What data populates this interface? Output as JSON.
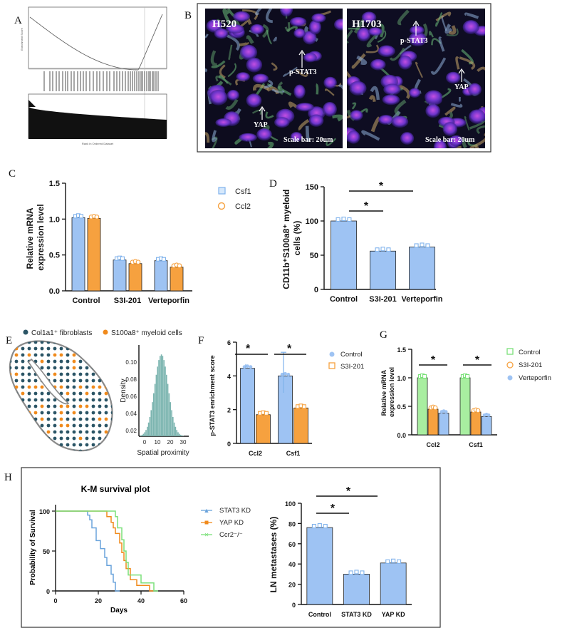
{
  "panels": {
    "A": "A",
    "B": "B",
    "C": "C",
    "D": "D",
    "E": "E",
    "F": "F",
    "G": "G",
    "H": "H"
  },
  "colors": {
    "blue": "#9ec3f3",
    "orange": "#f6a13f",
    "green": "#a8eea0",
    "dark_teal": "#2b5566",
    "hist_teal": "#7cb5b0",
    "km_blue": "#6aa3dc",
    "km_orange": "#f08a1c",
    "km_green": "#7be07a"
  },
  "panel_b": {
    "images": [
      {
        "title": "H520",
        "labels": [
          "p-STAT3",
          "YAP"
        ],
        "scale": "Scale bar: 20um"
      },
      {
        "title": "H1703",
        "labels": [
          "p-STAT3",
          "YAP"
        ],
        "scale": "Scale bar: 20um"
      }
    ]
  },
  "panel_e": {
    "legend": [
      "Col1a1⁺ fibroblasts",
      "S100a8⁺ myeloid cells"
    ],
    "hist_xlabel": "Spatial proximity",
    "hist_ylabel": "Density",
    "hist_yticks": [
      "0.10",
      "0.08",
      "0.06",
      "0.04",
      "0.02"
    ],
    "hist_xticks": [
      "0",
      "10",
      "20",
      "30"
    ]
  },
  "chart_data": [
    {
      "panel": "A",
      "type": "line",
      "xlabel": "Rank in Ordered Dataset",
      "ylabel": "Enrichment Score"
    },
    {
      "panel": "C",
      "type": "bar",
      "categories": [
        "Control",
        "S3I-201",
        "Verteporfin"
      ],
      "series": [
        {
          "name": "Csf1",
          "values": [
            1.02,
            0.43,
            0.42
          ]
        },
        {
          "name": "Ccl2",
          "values": [
            1.01,
            0.38,
            0.33
          ]
        }
      ],
      "ylabel": "Relative mRNA expression level",
      "ylim": [
        0,
        1.5
      ],
      "yticks": [
        "0.0",
        "0.5",
        "1.0",
        "1.5"
      ]
    },
    {
      "panel": "D",
      "type": "bar",
      "categories": [
        "Control",
        "S3I-201",
        "Verteporfin"
      ],
      "values": [
        100,
        56,
        62
      ],
      "ylabel": "CD11b⁺S100a8⁺ myeloid cells (%)",
      "ylim": [
        0,
        150
      ],
      "yticks": [
        "0",
        "50",
        "100",
        "150"
      ],
      "annotations": [
        "*",
        "*"
      ]
    },
    {
      "panel": "F",
      "type": "bar",
      "categories": [
        "Ccl2",
        "Csf1"
      ],
      "series": [
        {
          "name": "Control",
          "values": [
            4.45,
            4.0
          ]
        },
        {
          "name": "S3I-201",
          "values": [
            1.7,
            2.1
          ]
        }
      ],
      "ylabel": "p-STAT3 enrichment score",
      "ylim": [
        0,
        6
      ],
      "yticks": [
        "0",
        "2",
        "4",
        "6"
      ],
      "annotations": [
        "*",
        "*"
      ]
    },
    {
      "panel": "G",
      "type": "bar",
      "categories": [
        "Ccl2",
        "Csf1"
      ],
      "series": [
        {
          "name": "Control",
          "values": [
            1.0,
            1.0
          ]
        },
        {
          "name": "S3I-201",
          "values": [
            0.45,
            0.4
          ]
        },
        {
          "name": "Verteporfin",
          "values": [
            0.38,
            0.32
          ]
        }
      ],
      "ylabel": "Relative mRNA expression level",
      "ylim": [
        0,
        1.5
      ],
      "yticks": [
        "0.0",
        "0.5",
        "1.0",
        "1.5"
      ],
      "annotations": [
        "*",
        "*"
      ]
    },
    {
      "panel": "H-left",
      "type": "line",
      "title": "K-M survival plot",
      "xlabel": "Days",
      "ylabel": "Probability of Survival",
      "xlim": [
        0,
        60
      ],
      "ylim": [
        0,
        100
      ],
      "xticks": [
        "0",
        "20",
        "40",
        "60"
      ],
      "yticks": [
        "0",
        "50",
        "100"
      ],
      "series": [
        {
          "name": "STAT3 KD",
          "points": [
            [
              0,
              100
            ],
            [
              15,
              100
            ],
            [
              15,
              95
            ],
            [
              16,
              95
            ],
            [
              16,
              89
            ],
            [
              17,
              89
            ],
            [
              17,
              79
            ],
            [
              19,
              79
            ],
            [
              19,
              63
            ],
            [
              21,
              63
            ],
            [
              21,
              53
            ],
            [
              23,
              53
            ],
            [
              23,
              42
            ],
            [
              24,
              42
            ],
            [
              24,
              32
            ],
            [
              26,
              32
            ],
            [
              26,
              21
            ],
            [
              27,
              21
            ],
            [
              27,
              11
            ],
            [
              28,
              11
            ],
            [
              28,
              0
            ],
            [
              30,
              0
            ]
          ]
        },
        {
          "name": "YAP KD",
          "points": [
            [
              0,
              100
            ],
            [
              24,
              100
            ],
            [
              24,
              93
            ],
            [
              26,
              93
            ],
            [
              26,
              86
            ],
            [
              27,
              86
            ],
            [
              27,
              79
            ],
            [
              28,
              79
            ],
            [
              28,
              72
            ],
            [
              30,
              72
            ],
            [
              30,
              60
            ],
            [
              31,
              60
            ],
            [
              31,
              48
            ],
            [
              32,
              48
            ],
            [
              32,
              38
            ],
            [
              33,
              38
            ],
            [
              33,
              28
            ],
            [
              35,
              28
            ],
            [
              35,
              14
            ],
            [
              38,
              14
            ],
            [
              38,
              7
            ],
            [
              44,
              7
            ],
            [
              44,
              0
            ],
            [
              46,
              0
            ]
          ]
        },
        {
          "name": "Ccr2⁻/⁻",
          "points": [
            [
              0,
              100
            ],
            [
              28,
              100
            ],
            [
              28,
              93
            ],
            [
              29,
              93
            ],
            [
              29,
              79
            ],
            [
              31,
              79
            ],
            [
              31,
              64
            ],
            [
              32,
              64
            ],
            [
              32,
              50
            ],
            [
              33,
              50
            ],
            [
              33,
              36
            ],
            [
              34,
              36
            ],
            [
              34,
              20
            ],
            [
              40,
              20
            ],
            [
              40,
              10
            ],
            [
              46,
              10
            ],
            [
              46,
              0
            ],
            [
              48,
              0
            ]
          ]
        }
      ]
    },
    {
      "panel": "H-right",
      "type": "bar",
      "categories": [
        "Control",
        "STAT3 KD",
        "YAP KD"
      ],
      "values": [
        76,
        30,
        41
      ],
      "ylabel": "LN metastases (%)",
      "ylim": [
        0,
        100
      ],
      "yticks": [
        "0",
        "20",
        "40",
        "60",
        "80",
        "100"
      ],
      "annotations": [
        "*",
        "*"
      ]
    }
  ]
}
